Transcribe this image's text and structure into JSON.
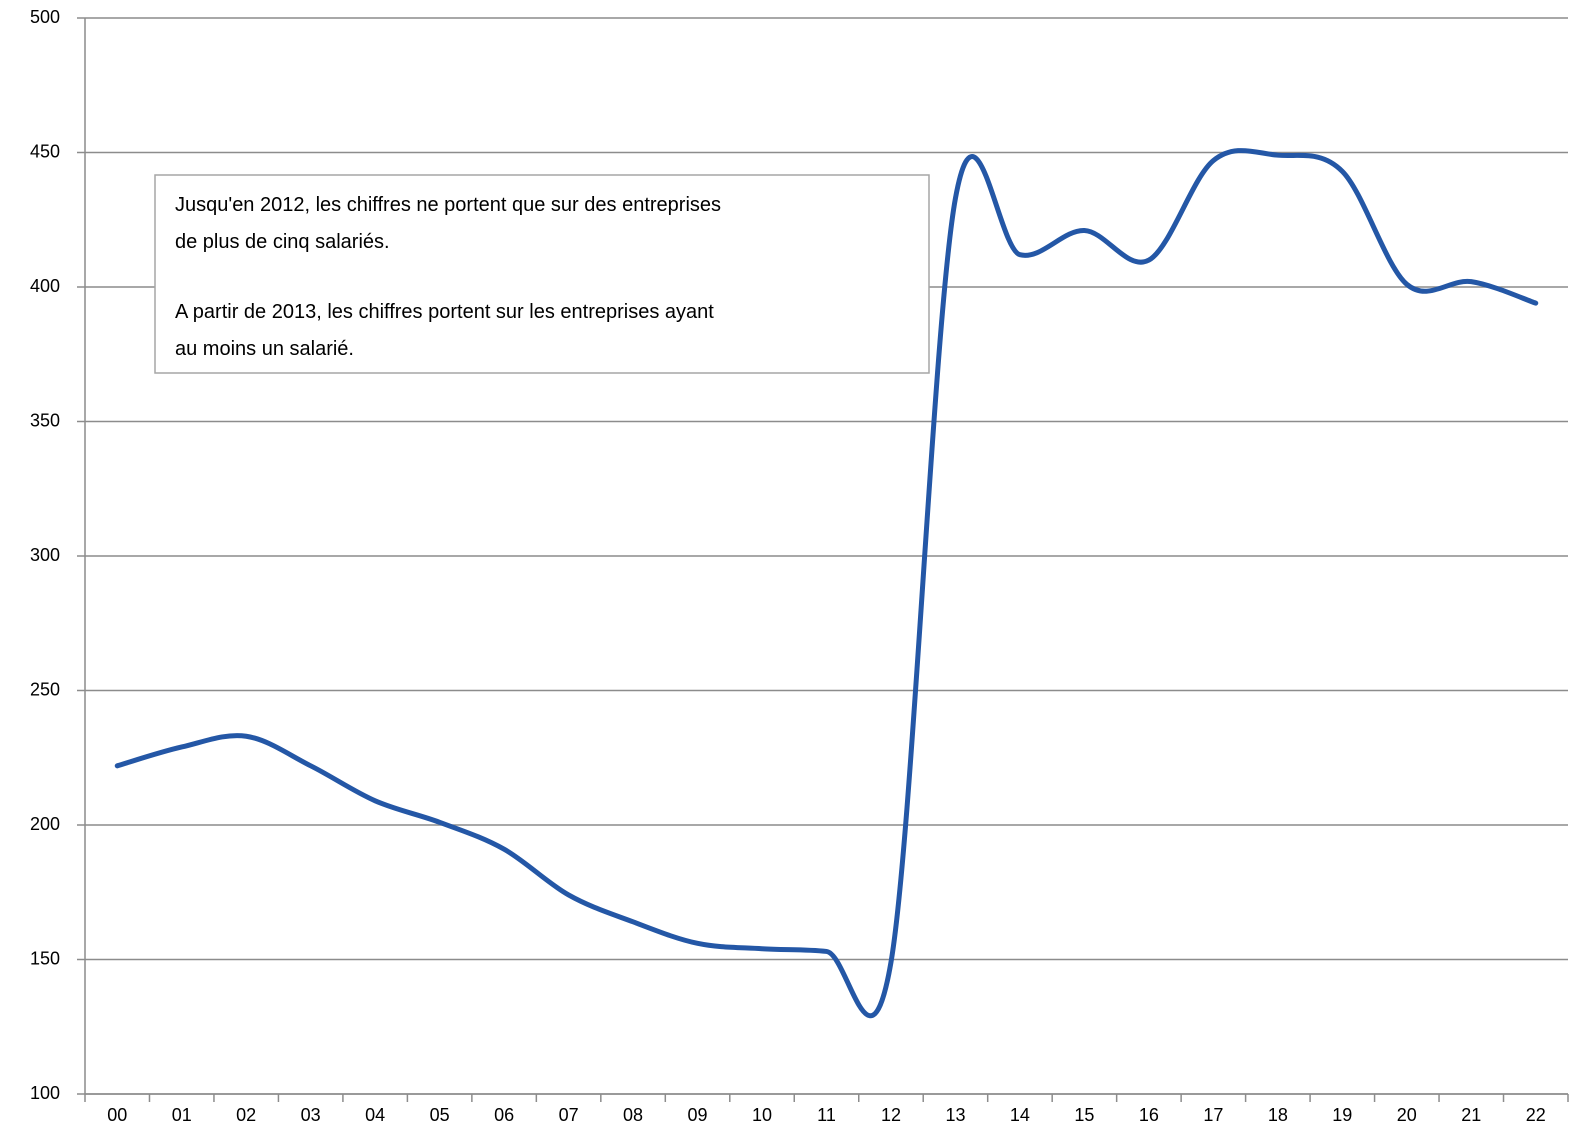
{
  "chart_data": {
    "type": "line",
    "categories": [
      "00",
      "01",
      "02",
      "03",
      "04",
      "05",
      "06",
      "07",
      "08",
      "09",
      "10",
      "11",
      "12",
      "13",
      "14",
      "15",
      "16",
      "17",
      "18",
      "19",
      "20",
      "21",
      "22"
    ],
    "series": [
      {
        "name": null,
        "color": "#2457a6",
        "values": [
          222,
          229,
          233,
          222,
          209,
          201,
          191,
          174,
          164,
          156,
          154,
          153,
          149,
          433,
          412,
          421,
          410,
          447,
          449,
          443,
          401,
          402,
          394
        ]
      }
    ],
    "ylim": [
      100,
      500
    ],
    "yticks": [
      100,
      150,
      200,
      250,
      300,
      350,
      400,
      450,
      500
    ],
    "grid": true,
    "annotation": [
      "Jusqu'en 2012, les chiffres ne portent que sur des entreprises",
      "de plus de cinq salariés.",
      "A partir de 2013, les chiffres portent sur les entreprises ayant",
      "au moins un salarié."
    ]
  }
}
